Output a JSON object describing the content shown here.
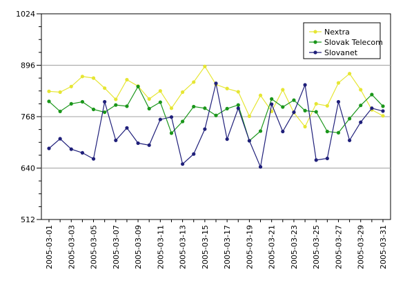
{
  "chart_data": {
    "type": "line",
    "title": "",
    "xlabel": "",
    "ylabel": "",
    "ylim": [
      512,
      1024
    ],
    "yticks": [
      512,
      640,
      768,
      896,
      1024
    ],
    "grid": true,
    "legend_position": "top-right",
    "x": [
      "2005-03-01",
      "2005-03-02",
      "2005-03-03",
      "2005-03-04",
      "2005-03-05",
      "2005-03-06",
      "2005-03-07",
      "2005-03-08",
      "2005-03-09",
      "2005-03-10",
      "2005-03-11",
      "2005-03-12",
      "2005-03-13",
      "2005-03-14",
      "2005-03-15",
      "2005-03-16",
      "2005-03-17",
      "2005-03-18",
      "2005-03-19",
      "2005-03-20",
      "2005-03-21",
      "2005-03-22",
      "2005-03-23",
      "2005-03-24",
      "2005-03-25",
      "2005-03-26",
      "2005-03-27",
      "2005-03-28",
      "2005-03-29",
      "2005-03-30",
      "2005-03-31"
    ],
    "xtick_labels": [
      "2005-03-01",
      "2005-03-03",
      "2005-03-05",
      "2005-03-07",
      "2005-03-09",
      "2005-03-11",
      "2005-03-13",
      "2005-03-15",
      "2005-03-17",
      "2005-03-19",
      "2005-03-21",
      "2005-03-23",
      "2005-03-25",
      "2005-03-27",
      "2005-03-29",
      "2005-03-31"
    ],
    "series": [
      {
        "name": "Nextra",
        "color": "#e6e633",
        "values": [
          831,
          829,
          843,
          868,
          864,
          839,
          811,
          860,
          844,
          812,
          832,
          789,
          829,
          854,
          893,
          848,
          838,
          830,
          769,
          821,
          781,
          835,
          778,
          743,
          800,
          795,
          852,
          875,
          835,
          785,
          770
        ]
      },
      {
        "name": "Slovak Telecom",
        "color": "#1a961a",
        "values": [
          806,
          781,
          800,
          805,
          786,
          779,
          797,
          794,
          843,
          788,
          804,
          727,
          756,
          793,
          789,
          771,
          788,
          797,
          708,
          732,
          812,
          792,
          809,
          783,
          780,
          731,
          728,
          763,
          796,
          823,
          794
        ]
      },
      {
        "name": "Slovanet",
        "color": "#1f1f7a",
        "values": [
          689,
          713,
          687,
          678,
          663,
          805,
          709,
          740,
          702,
          697,
          761,
          767,
          650,
          675,
          737,
          851,
          712,
          789,
          708,
          643,
          799,
          731,
          779,
          847,
          660,
          664,
          805,
          709,
          754,
          789,
          782
        ]
      }
    ]
  }
}
